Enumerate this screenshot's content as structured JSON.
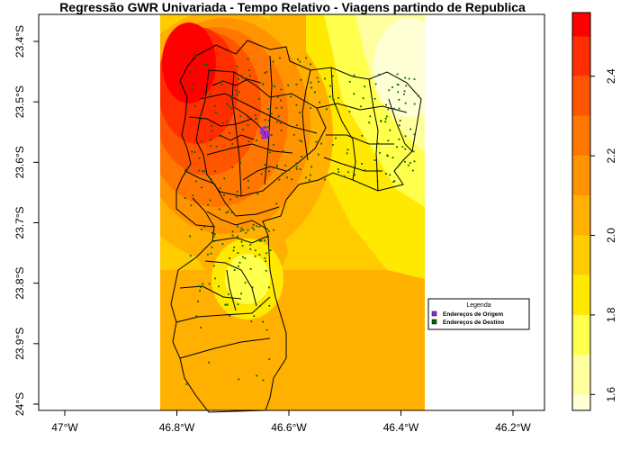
{
  "title": "Regressão GWR Univariada - Tempo Relativo - Viagens partindo de Republica",
  "x_ticks": [
    {
      "label": "47°W",
      "value": -47.0
    },
    {
      "label": "46.8°W",
      "value": -46.8
    },
    {
      "label": "46.6°W",
      "value": -46.6
    },
    {
      "label": "46.4°W",
      "value": -46.4
    },
    {
      "label": "46.2°W",
      "value": -46.2
    }
  ],
  "y_ticks": [
    {
      "label": "23.4°S",
      "value": -23.4
    },
    {
      "label": "23.5°S",
      "value": -23.5
    },
    {
      "label": "23.6°S",
      "value": -23.6
    },
    {
      "label": "23.7°S",
      "value": -23.7
    },
    {
      "label": "23.8°S",
      "value": -23.8
    },
    {
      "label": "23.9°S",
      "value": -23.9
    },
    {
      "label": "24°S",
      "value": -24.0
    }
  ],
  "colorbar": {
    "range": [
      1.56,
      2.56
    ],
    "breaks": [
      1.6,
      1.7,
      1.8,
      1.9,
      2.0,
      2.1,
      2.2,
      2.3,
      2.4,
      2.5
    ],
    "tick_labels": [
      {
        "label": "1.6",
        "value": 1.6
      },
      {
        "label": "1.8",
        "value": 1.8
      },
      {
        "label": "2.0",
        "value": 2.0
      },
      {
        "label": "2.2",
        "value": 2.2
      },
      {
        "label": "2.4",
        "value": 2.4
      }
    ],
    "colors": [
      "#FFFFD6",
      "#FFFFA0",
      "#FFFF4D",
      "#FFE900",
      "#FFCC00",
      "#FFB000",
      "#FF9400",
      "#FF7700",
      "#FF5400",
      "#FF2D00",
      "#FF0000"
    ]
  },
  "legend": {
    "title": "Legenda",
    "items": [
      {
        "label": "Endereços de Origem",
        "color": "#8A2BE2"
      },
      {
        "label": "Endereços de Destino",
        "color": "#006400"
      }
    ]
  },
  "colors": {
    "background": "#ffffff",
    "border": "#000000",
    "origin": "#8A2BE2",
    "destination": "#006400"
  }
}
